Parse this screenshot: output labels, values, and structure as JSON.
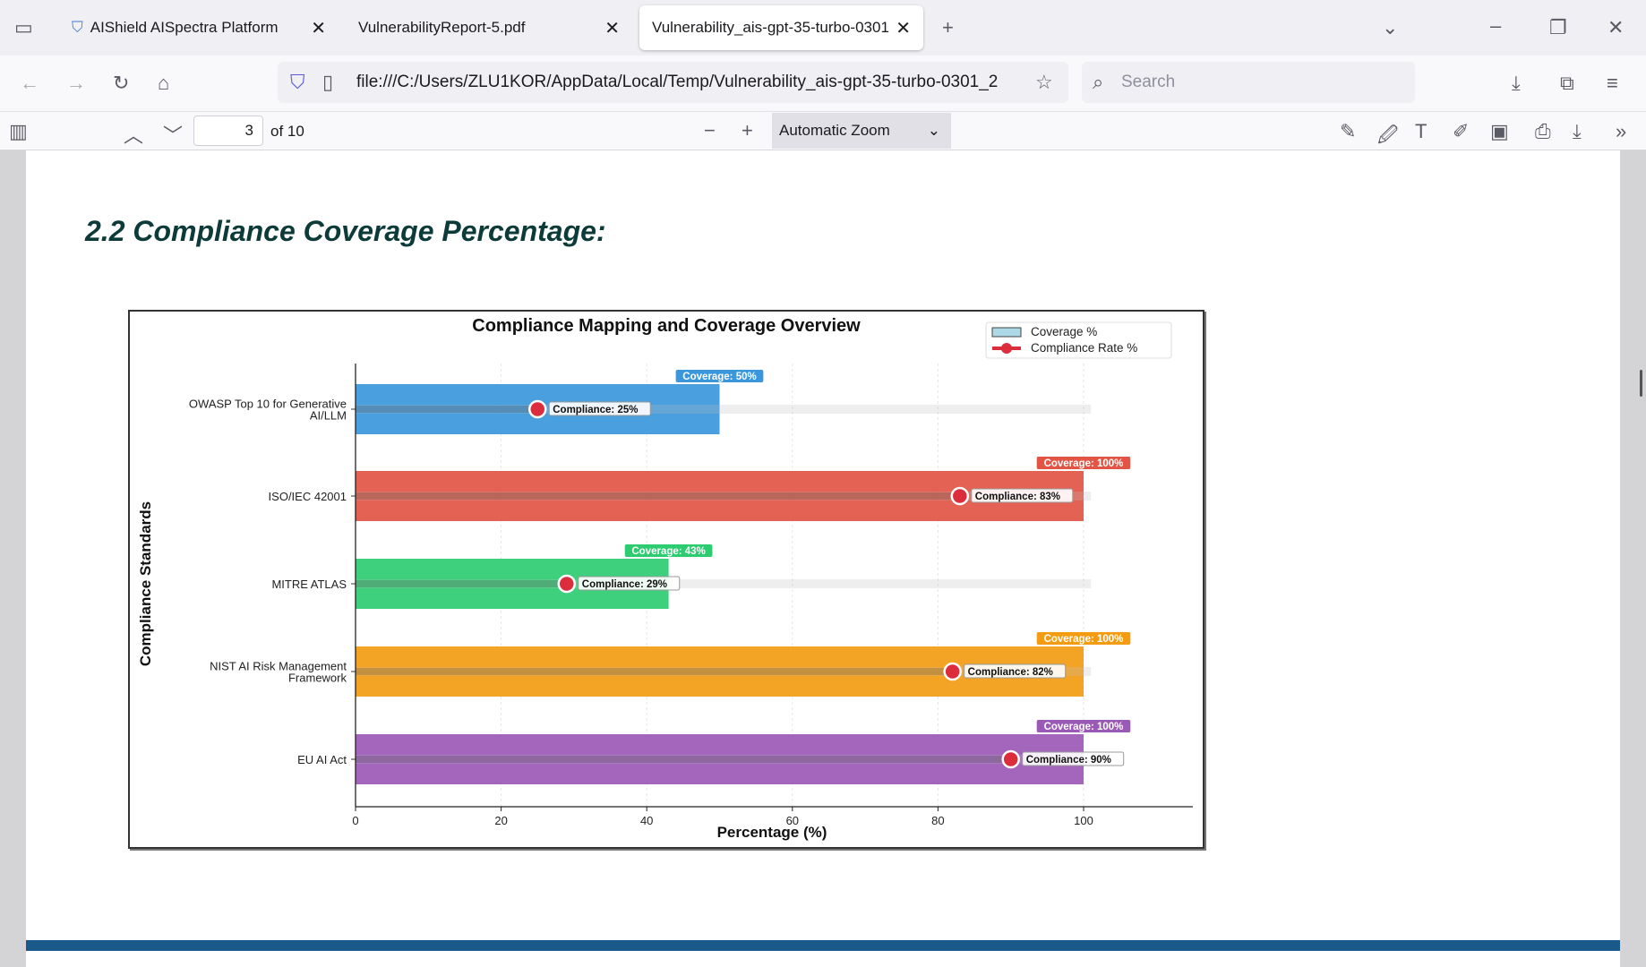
{
  "browser": {
    "tabs": [
      {
        "label": "AIShield AISpectra Platform"
      },
      {
        "label": "VulnerabilityReport-5.pdf"
      },
      {
        "label": "Vulnerability_ais-gpt-35-turbo-0301"
      }
    ],
    "url": "file:///C:/Users/ZLU1KOR/AppData/Local/Temp/Vulnerability_ais-gpt-35-turbo-0301_2",
    "search_placeholder": "Search"
  },
  "pdf_toolbar": {
    "page": "3",
    "page_count": "of 10",
    "zoom": "Automatic Zoom"
  },
  "document": {
    "heading": "2.2 Compliance Coverage Percentage:"
  },
  "chart_data": {
    "type": "bar",
    "title": "Compliance Mapping and Coverage Overview",
    "xlabel": "Percentage (%)",
    "ylabel": "Compliance Standards",
    "xlim": [
      0,
      115
    ],
    "xticks": [
      0,
      20,
      40,
      60,
      80,
      100
    ],
    "grid": true,
    "legend_position": "top-right",
    "legend": [
      "Coverage %",
      "Compliance Rate %"
    ],
    "categories": [
      "OWASP Top 10 for Generative AI/LLM",
      "ISO/IEC 42001",
      "MITRE ATLAS",
      "NIST AI Risk Management Framework",
      "EU AI Act"
    ],
    "category_lines": [
      [
        "OWASP Top 10 for Generative",
        "AI/LLM"
      ],
      [
        "ISO/IEC 42001"
      ],
      [
        "MITRE ATLAS"
      ],
      [
        "NIST AI Risk Management",
        "Framework"
      ],
      [
        "EU AI Act"
      ]
    ],
    "series": [
      {
        "name": "Coverage %",
        "values": [
          50,
          100,
          43,
          100,
          100
        ],
        "labels": [
          "Coverage: 50%",
          "Coverage: 100%",
          "Coverage: 43%",
          "Coverage: 100%",
          "Coverage: 100%"
        ]
      },
      {
        "name": "Compliance Rate %",
        "values": [
          25,
          83,
          29,
          82,
          90
        ],
        "labels": [
          "Compliance: 25%",
          "Compliance: 83%",
          "Compliance: 29%",
          "Compliance: 82%",
          "Compliance: 90%"
        ]
      }
    ],
    "colors": [
      "#3b97dc",
      "#e25545",
      "#2ecc71",
      "#f39c12",
      "#9b59b6"
    ],
    "compliance_color": "#dc2d3c"
  }
}
